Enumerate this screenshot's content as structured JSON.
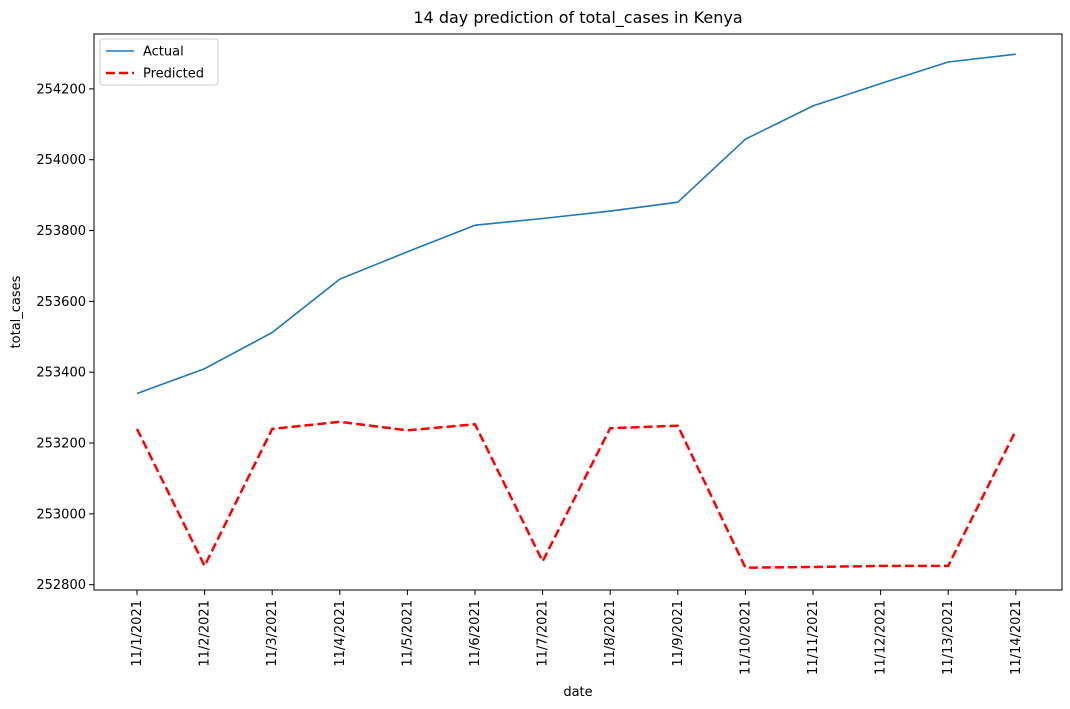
{
  "chart_data": {
    "type": "line",
    "title": "14 day prediction of total_cases in Kenya",
    "xlabel": "date",
    "ylabel": "total_cases",
    "categories": [
      "11/1/2021",
      "11/2/2021",
      "11/3/2021",
      "11/4/2021",
      "11/5/2021",
      "11/6/2021",
      "11/7/2021",
      "11/8/2021",
      "11/9/2021",
      "11/10/2021",
      "11/11/2021",
      "11/12/2021",
      "11/13/2021",
      "11/14/2021"
    ],
    "ylim": [
      252785,
      254355
    ],
    "yticks": [
      252800,
      253000,
      253200,
      253400,
      253600,
      253800,
      254000,
      254200
    ],
    "grid": false,
    "legend_position": "top-left",
    "series": [
      {
        "name": "Actual",
        "color": "#1f77b4",
        "style": "solid",
        "values": [
          253340,
          253410,
          253512,
          253663,
          253740,
          253815,
          253834,
          253855,
          253880,
          254058,
          254152,
          254215,
          254276,
          254298
        ]
      },
      {
        "name": "Predicted",
        "color": "#ff0000",
        "style": "dashed",
        "values": [
          253240,
          252853,
          253240,
          253260,
          253236,
          253253,
          252866,
          253242,
          253249,
          252848,
          252850,
          252853,
          252853,
          253235
        ]
      }
    ]
  }
}
